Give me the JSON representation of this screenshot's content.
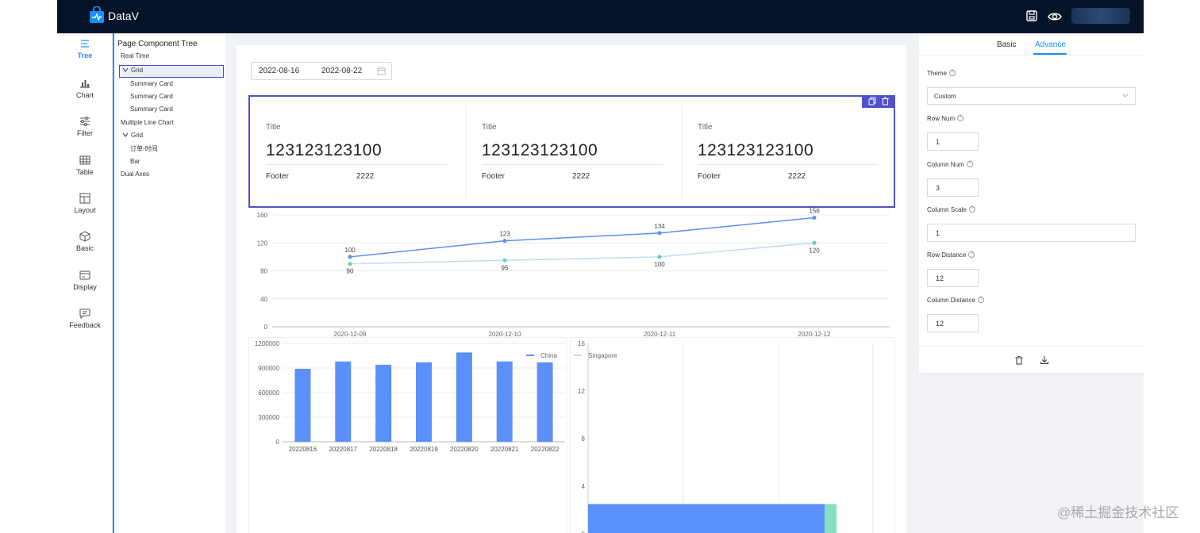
{
  "app": {
    "title": "DataV"
  },
  "nav": [
    {
      "label": "Tree",
      "icon": "tree-icon",
      "active": true
    },
    {
      "label": "Chart",
      "icon": "chart-icon"
    },
    {
      "label": "Filter",
      "icon": "filter-icon"
    },
    {
      "label": "Table",
      "icon": "table-icon"
    },
    {
      "label": "Layout",
      "icon": "layout-icon"
    },
    {
      "label": "Basic",
      "icon": "cube-icon"
    },
    {
      "label": "Display",
      "icon": "display-icon"
    },
    {
      "label": "Feedback",
      "icon": "feedback-icon"
    }
  ],
  "tree": {
    "title": "Page Component Tree",
    "nodes": [
      {
        "label": "Real Time"
      },
      {
        "label": "Grid",
        "selected": true,
        "expanded": true
      },
      {
        "label": "Summary Card"
      },
      {
        "label": "Summary Card"
      },
      {
        "label": "Summary Card"
      },
      {
        "label": "Multiple Line Chart"
      },
      {
        "label": "Grid",
        "expanded": true
      },
      {
        "label": "订单-时间"
      },
      {
        "label": "Bar"
      },
      {
        "label": "Dual Axes"
      }
    ]
  },
  "canvas": {
    "date_range": {
      "start": "2022-08-16",
      "end": "2022-08-22"
    },
    "cards": [
      {
        "title": "Title",
        "value": "123123123100",
        "footer_label": "Footer",
        "footer_value": "2222"
      },
      {
        "title": "Title",
        "value": "123123123100",
        "footer_label": "Footer",
        "footer_value": "2222"
      },
      {
        "title": "Title",
        "value": "123123123100",
        "footer_label": "Footer",
        "footer_value": "2222"
      }
    ]
  },
  "chart_data": [
    {
      "type": "line",
      "x": [
        "2020-12-09",
        "2020-12-10",
        "2020-12-11",
        "2020-12-12"
      ],
      "series": [
        {
          "name": "China",
          "values": [
            100,
            123,
            134,
            156
          ],
          "color": "#5b8ff9"
        },
        {
          "name": "Singapore",
          "values": [
            90,
            95,
            100,
            120
          ],
          "color": "#5ad8a6"
        }
      ],
      "yticks": [
        0,
        40,
        80,
        120,
        160
      ],
      "ylim": [
        0,
        160
      ],
      "legend": "bottom"
    },
    {
      "type": "bar",
      "categories": [
        "20220816",
        "20220817",
        "20220818",
        "20220819",
        "20220820",
        "20220821",
        "20220822"
      ],
      "values": [
        890000,
        980000,
        940000,
        970000,
        1090000,
        980000,
        970000
      ],
      "yticks": [
        0,
        300000,
        600000,
        900000,
        1200000
      ],
      "ylim": [
        0,
        1200000
      ],
      "color": "#5b8ff9"
    },
    {
      "type": "bar",
      "title": "",
      "yticks": [
        0,
        4,
        8,
        12,
        16
      ],
      "ylim": [
        0,
        16
      ],
      "series": [
        {
          "values": [
            2.5
          ],
          "color": "#5b8ff9"
        },
        {
          "values": [
            2.5
          ],
          "color": "#86dfc4"
        }
      ]
    }
  ],
  "props": {
    "tabs": [
      "Basic",
      "Advance"
    ],
    "active_tab": "Advance",
    "fields": {
      "theme": {
        "label": "Theme",
        "value": "Custom"
      },
      "row_num": {
        "label": "Row Num",
        "value": "1"
      },
      "column_num": {
        "label": "Column Num",
        "value": "3"
      },
      "column_scale": {
        "label": "Column Scale",
        "value": "1"
      },
      "row_distance": {
        "label": "Row Distance",
        "value": "12"
      },
      "column_distance": {
        "label": "Column Distance",
        "value": "12"
      }
    }
  },
  "watermark": "@稀土掘金技术社区"
}
